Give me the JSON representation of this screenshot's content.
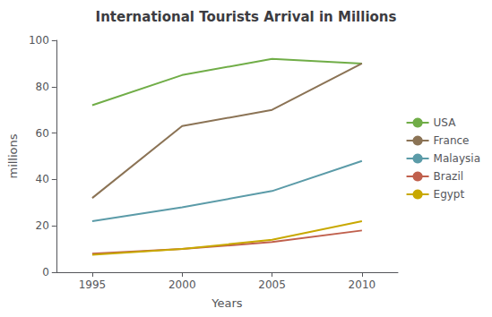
{
  "chart_data": {
    "type": "line",
    "title": "International Tourists Arrival in Millions",
    "xlabel": "Years",
    "ylabel": "millions",
    "x": [
      1995,
      2000,
      2005,
      2010
    ],
    "series": [
      {
        "name": "USA",
        "color": "#70AD47",
        "values": [
          72,
          85,
          92,
          90
        ]
      },
      {
        "name": "France",
        "color": "#8B7355",
        "values": [
          32,
          63,
          70,
          90
        ]
      },
      {
        "name": "Malaysia",
        "color": "#5B9BA8",
        "values": [
          22,
          28,
          35,
          48
        ]
      },
      {
        "name": "Brazil",
        "color": "#C0604D",
        "values": [
          8,
          10,
          13,
          18
        ]
      },
      {
        "name": "Egypt",
        "color": "#C8A800",
        "values": [
          7.5,
          10,
          14,
          22
        ]
      }
    ],
    "xlim": [
      1993,
      2012
    ],
    "xticks": [
      1995,
      2000,
      2005,
      2010
    ],
    "ylim": [
      0,
      100
    ],
    "yticks": [
      0,
      20,
      40,
      60,
      80,
      100
    ],
    "grid": false,
    "legend": "right"
  }
}
